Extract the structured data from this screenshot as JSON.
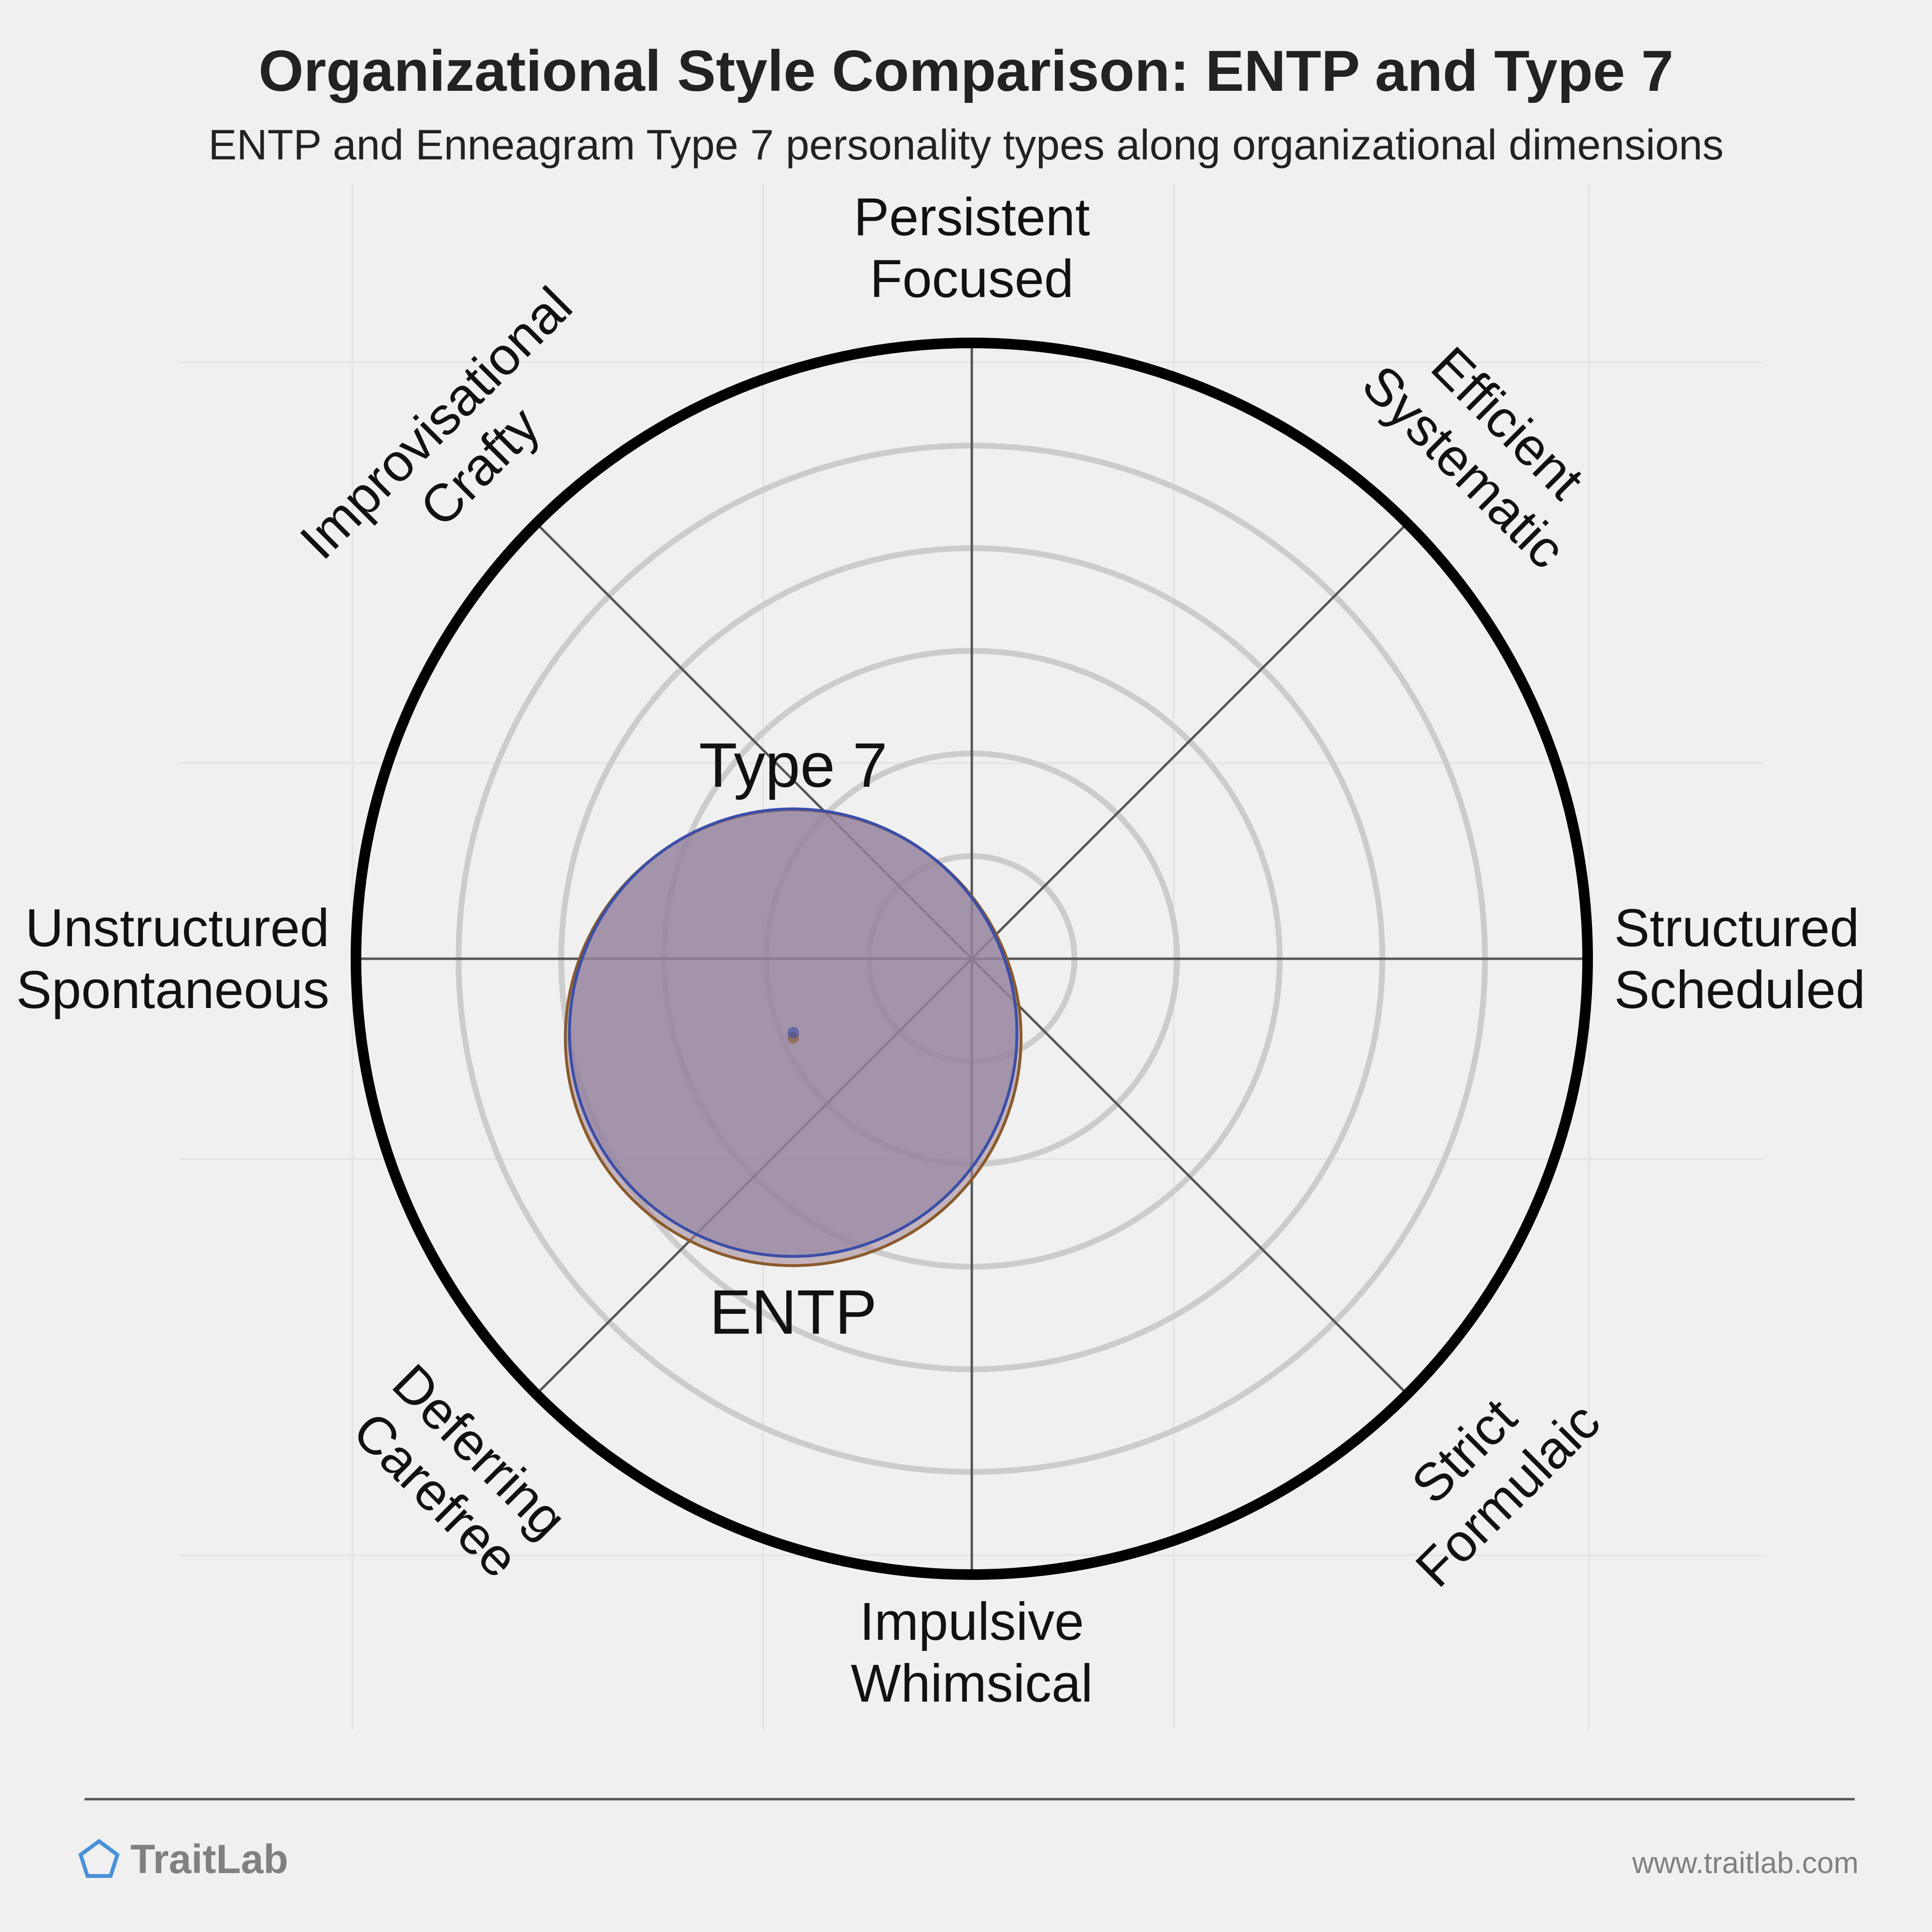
{
  "chart_data": {
    "type": "radar-overlap",
    "title": "Organizational Style Comparison: ENTP and Type 7",
    "subtitle": "ENTP and Enneagram Type 7 personality types along organizational dimensions",
    "axes": [
      {
        "angle_deg": 90,
        "lines": [
          "Persistent",
          "Focused"
        ]
      },
      {
        "angle_deg": 45,
        "lines": [
          "Efficient",
          "Systematic"
        ]
      },
      {
        "angle_deg": 0,
        "lines": [
          "Structured",
          "Scheduled"
        ]
      },
      {
        "angle_deg": -45,
        "lines": [
          "Strict",
          "Formulaic"
        ]
      },
      {
        "angle_deg": -90,
        "lines": [
          "Impulsive",
          "Whimsical"
        ]
      },
      {
        "angle_deg": -135,
        "lines": [
          "Deferring",
          "Carefree"
        ]
      },
      {
        "angle_deg": 180,
        "lines": [
          "Unstructured",
          "Spontaneous"
        ]
      },
      {
        "angle_deg": 135,
        "lines": [
          "Improvisational",
          "Crafty"
        ]
      }
    ],
    "ring_count": 6,
    "range": [
      0,
      6
    ],
    "series": [
      {
        "name": "Type 7",
        "center": [
          -1.74,
          -0.77
        ],
        "radius": 2.22,
        "color": "#8b5a2b",
        "fill": "#a58b9a"
      },
      {
        "name": "ENTP",
        "center": [
          -1.74,
          -0.72
        ],
        "radius": 2.18,
        "color": "#3b4ea8",
        "fill": "#8e7ea0"
      }
    ]
  },
  "footer": {
    "brand": "TraitLab",
    "url": "www.traitlab.com",
    "brand_color": "#4a90d9"
  }
}
